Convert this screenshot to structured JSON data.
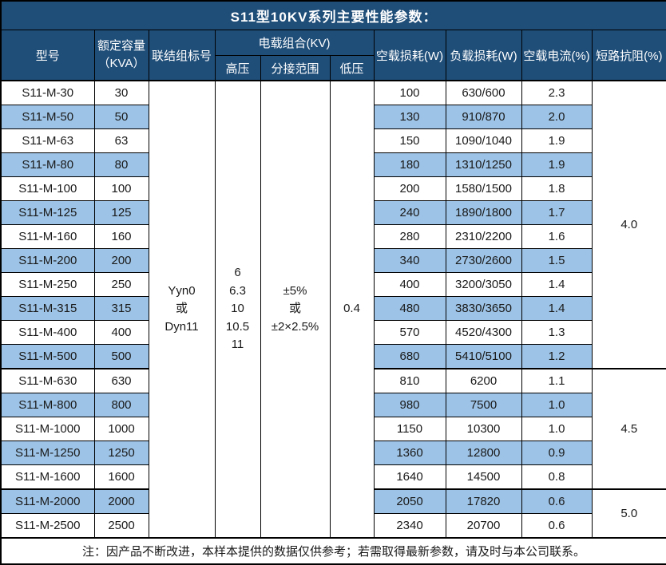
{
  "title": "S11型10KV系列主要性能参数：",
  "colors": {
    "header_bg": "#1F4E79",
    "header_text": "#FFFFFF",
    "band_row_bg": "#9DC3E6",
    "row_bg": "#FFFFFF",
    "border": "#000000",
    "body_text": "#1A1A1A"
  },
  "header": {
    "model": "型号",
    "capacity": "额定容量\n（KVA）",
    "connection": "联结组标号",
    "voltage_group": "电载组合(KV)",
    "hv": "高压",
    "tap": "分接范围",
    "lv": "低压",
    "no_load_loss": "空载损耗(W)",
    "load_loss": "负载损耗(W)",
    "no_load_current": "空载电流(%)",
    "short_circuit": "短路抗阻(%)"
  },
  "merged": {
    "connection": "Yyn0\n或\nDyn11",
    "hv": "6\n6.3\n10\n10.5\n11",
    "tap": "±5%\n或\n±2×2.5%",
    "lv": "0.4"
  },
  "shortcircuit_groups": [
    {
      "value": "4.0",
      "start": 0,
      "span": 12
    },
    {
      "value": "4.5",
      "start": 12,
      "span": 5
    },
    {
      "value": "5.0",
      "start": 17,
      "span": 2
    }
  ],
  "rows": [
    {
      "model": "S11-M-30",
      "capacity": "30",
      "no_load_loss": "100",
      "load_loss": "630/600",
      "no_load_current": "2.3"
    },
    {
      "model": "S11-M-50",
      "capacity": "50",
      "no_load_loss": "130",
      "load_loss": "910/870",
      "no_load_current": "2.0"
    },
    {
      "model": "S11-M-63",
      "capacity": "63",
      "no_load_loss": "150",
      "load_loss": "1090/1040",
      "no_load_current": "1.9"
    },
    {
      "model": "S11-M-80",
      "capacity": "80",
      "no_load_loss": "180",
      "load_loss": "1310/1250",
      "no_load_current": "1.9"
    },
    {
      "model": "S11-M-100",
      "capacity": "100",
      "no_load_loss": "200",
      "load_loss": "1580/1500",
      "no_load_current": "1.8"
    },
    {
      "model": "S11-M-125",
      "capacity": "125",
      "no_load_loss": "240",
      "load_loss": "1890/1800",
      "no_load_current": "1.7"
    },
    {
      "model": "S11-M-160",
      "capacity": "160",
      "no_load_loss": "280",
      "load_loss": "2310/2200",
      "no_load_current": "1.6"
    },
    {
      "model": "S11-M-200",
      "capacity": "200",
      "no_load_loss": "340",
      "load_loss": "2730/2600",
      "no_load_current": "1.5"
    },
    {
      "model": "S11-M-250",
      "capacity": "250",
      "no_load_loss": "400",
      "load_loss": "3200/3050",
      "no_load_current": "1.4"
    },
    {
      "model": "S11-M-315",
      "capacity": "315",
      "no_load_loss": "480",
      "load_loss": "3830/3650",
      "no_load_current": "1.4"
    },
    {
      "model": "S11-M-400",
      "capacity": "400",
      "no_load_loss": "570",
      "load_loss": "4520/4300",
      "no_load_current": "1.3"
    },
    {
      "model": "S11-M-500",
      "capacity": "500",
      "no_load_loss": "680",
      "load_loss": "5410/5100",
      "no_load_current": "1.2"
    },
    {
      "model": "S11-M-630",
      "capacity": "630",
      "no_load_loss": "810",
      "load_loss": "6200",
      "no_load_current": "1.1"
    },
    {
      "model": "S11-M-800",
      "capacity": "800",
      "no_load_loss": "980",
      "load_loss": "7500",
      "no_load_current": "1.0"
    },
    {
      "model": "S11-M-1000",
      "capacity": "1000",
      "no_load_loss": "1150",
      "load_loss": "10300",
      "no_load_current": "1.0"
    },
    {
      "model": "S11-M-1250",
      "capacity": "1250",
      "no_load_loss": "1360",
      "load_loss": "12800",
      "no_load_current": "0.9"
    },
    {
      "model": "S11-M-1600",
      "capacity": "1600",
      "no_load_loss": "1640",
      "load_loss": "14500",
      "no_load_current": "0.8"
    },
    {
      "model": "S11-M-2000",
      "capacity": "2000",
      "no_load_loss": "2050",
      "load_loss": "17820",
      "no_load_current": "0.6"
    },
    {
      "model": "S11-M-2500",
      "capacity": "2500",
      "no_load_loss": "2340",
      "load_loss": "20700",
      "no_load_current": "0.6"
    }
  ],
  "note": "注：因产品不断改进，本样本提供的数据仅供参考；若需取得最新参数，请及时与本公司联系。"
}
